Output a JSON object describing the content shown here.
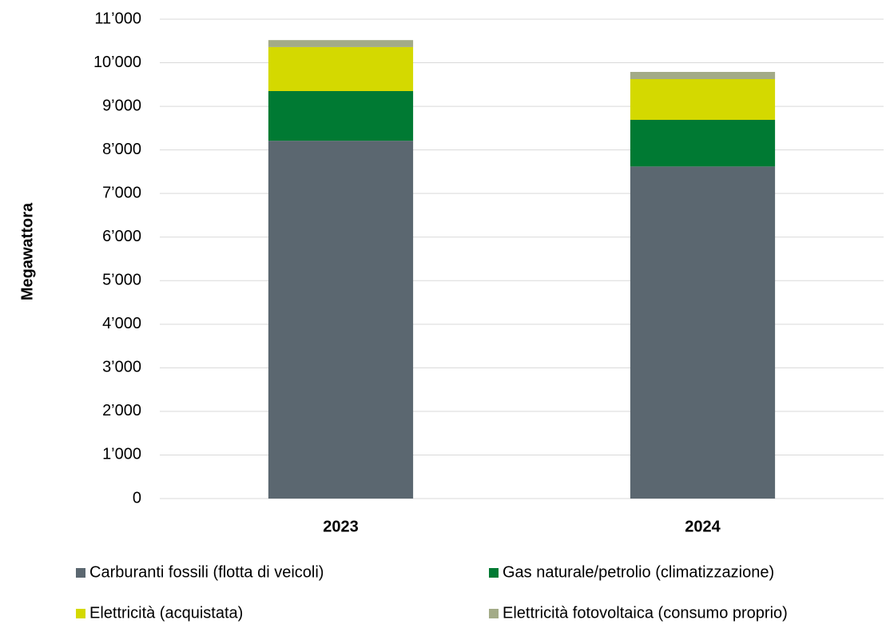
{
  "chart_data": {
    "type": "stacked_bar",
    "y_label": "Megawattora",
    "categories": [
      "2023",
      "2024"
    ],
    "series": [
      {
        "name": "Carburanti fossili (flotta di veicoli)",
        "color": "#5b6770",
        "values": [
          8210,
          7620
        ]
      },
      {
        "name": "Gas naturale/petrolio (climatizzazione)",
        "color": "#007a33",
        "values": [
          1140,
          1070
        ]
      },
      {
        "name": "Elettricità (acquistata)",
        "color": "#d4d900",
        "values": [
          1010,
          935
        ]
      },
      {
        "name": "Elettricità fotovoltaica (consumo proprio)",
        "color": "#a3ab87",
        "values": [
          160,
          165
        ]
      }
    ],
    "ylim": [
      0,
      11000
    ],
    "yticks": [
      0,
      {
        "value": 1000,
        "label": "1’000"
      },
      {
        "value": 2000,
        "label": "2’000"
      },
      {
        "value": 3000,
        "label": "3’000"
      },
      {
        "value": 4000,
        "label": "4’000"
      },
      {
        "value": 5000,
        "label": "5’000"
      },
      {
        "value": 6000,
        "label": "6’000"
      },
      {
        "value": 7000,
        "label": "7’000"
      },
      {
        "value": 8000,
        "label": "8’000"
      },
      {
        "value": 9000,
        "label": "9’000"
      },
      {
        "value": 10000,
        "label": "10’000"
      },
      {
        "value": 11000,
        "label": "11’000"
      }
    ],
    "grid": true
  }
}
